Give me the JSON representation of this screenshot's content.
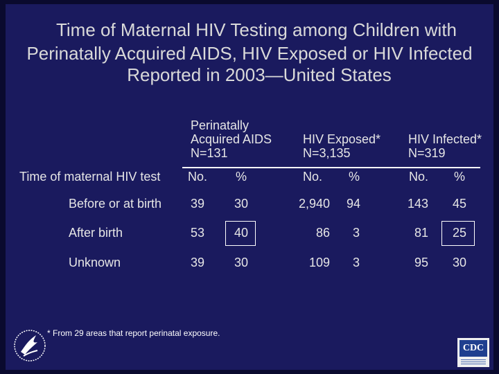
{
  "title": {
    "line1": "Time of Maternal HIV Testing among Children with",
    "line2": "Perinatally Acquired AIDS, HIV Exposed or HIV Infected",
    "line3": "Reported in 2003—United States"
  },
  "groups": [
    {
      "line1": "Perinatally",
      "line2": "Acquired AIDS",
      "line3": "N=131"
    },
    {
      "line1": "HIV Exposed*",
      "line2": "N=3,135"
    },
    {
      "line1": "HIV Infected*",
      "line2": "N=319"
    }
  ],
  "row_header": "Time of maternal HIV test",
  "col_no": "No.",
  "col_pct": "%",
  "rows": [
    {
      "label": "Before or at birth",
      "values": [
        "39",
        "30",
        "2,940",
        "94",
        "143",
        "45"
      ]
    },
    {
      "label": "After birth",
      "values": [
        "53",
        "40",
        "86",
        "3",
        "81",
        "25"
      ]
    },
    {
      "label": "Unknown",
      "values": [
        "39",
        "30",
        "109",
        "3",
        "95",
        "30"
      ]
    }
  ],
  "footnote": "* From 29 areas that report perinatal exposure.",
  "cdc_logo": "CDC",
  "icons": {
    "hhs": "hhs-eagle-logo-icon",
    "cdc": "cdc-logo-icon"
  }
}
